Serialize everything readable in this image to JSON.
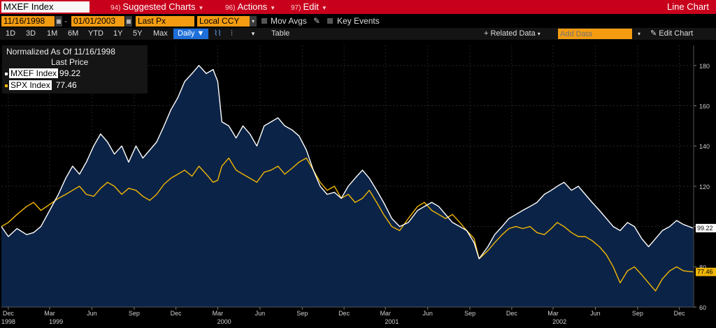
{
  "header": {
    "ticker": "MXEF Index",
    "menus": [
      {
        "num": "94)",
        "label": "Suggested Charts"
      },
      {
        "num": "96)",
        "label": "Actions"
      },
      {
        "num": "97)",
        "label": "Edit"
      }
    ],
    "title": "Line Chart"
  },
  "controls": {
    "start_date": "11/16/1998",
    "end_date": "01/01/2003",
    "field": "Last Px",
    "currency": "Local CCY",
    "mov_avgs": "Mov Avgs",
    "key_events": "Key Events"
  },
  "ranges": {
    "items": [
      "1D",
      "3D",
      "1M",
      "6M",
      "YTD",
      "1Y",
      "5Y",
      "Max"
    ],
    "frequency": "Daily",
    "table": "Table",
    "related": "+ Related Data",
    "add_data_placeholder": "Add Data",
    "edit_chart": "Edit Chart"
  },
  "legend": {
    "title": "Normalized As Of 11/16/1998",
    "subtitle": "Last Price",
    "entries": [
      {
        "name": "MXEF Index",
        "value": "99.22",
        "color": "#ffffff"
      },
      {
        "name": "SPX Index",
        "value": "77.46",
        "color": "#f2b705"
      }
    ]
  },
  "chart_data": {
    "type": "line",
    "ylim": [
      60,
      190
    ],
    "y_ticks": [
      60,
      80,
      100,
      120,
      140,
      160,
      180
    ],
    "x_range": [
      "1998-11-16",
      "2003-01-01"
    ],
    "x_tick_labels": [
      {
        "date": "1998-12-01",
        "label": "Dec"
      },
      {
        "date": "1999-03-01",
        "label": "Mar"
      },
      {
        "date": "1999-06-01",
        "label": "Jun"
      },
      {
        "date": "1999-09-01",
        "label": "Sep"
      },
      {
        "date": "1999-12-01",
        "label": "Dec"
      },
      {
        "date": "2000-03-01",
        "label": "Mar"
      },
      {
        "date": "2000-06-01",
        "label": "Jun"
      },
      {
        "date": "2000-09-01",
        "label": "Sep"
      },
      {
        "date": "2000-12-01",
        "label": "Dec"
      },
      {
        "date": "2001-03-01",
        "label": "Mar"
      },
      {
        "date": "2001-06-01",
        "label": "Jun"
      },
      {
        "date": "2001-09-01",
        "label": "Sep"
      },
      {
        "date": "2001-12-01",
        "label": "Dec"
      },
      {
        "date": "2002-03-01",
        "label": "Mar"
      },
      {
        "date": "2002-06-01",
        "label": "Jun"
      },
      {
        "date": "2002-09-01",
        "label": "Sep"
      },
      {
        "date": "2002-12-01",
        "label": "Dec"
      }
    ],
    "year_labels": [
      {
        "date": "1998-12-01",
        "label": "1998"
      },
      {
        "date": "1999-03-15",
        "label": "1999"
      },
      {
        "date": "2000-03-15",
        "label": "2000"
      },
      {
        "date": "2001-03-15",
        "label": "2001"
      },
      {
        "date": "2002-03-15",
        "label": "2002"
      }
    ],
    "series": [
      {
        "name": "MXEF Index",
        "color": "#ffffff",
        "fill": "#0b2346",
        "last": 99.22,
        "points": [
          [
            "1998-11-16",
            100
          ],
          [
            "1998-12-01",
            95
          ],
          [
            "1998-12-20",
            99
          ],
          [
            "1999-01-10",
            96
          ],
          [
            "1999-01-25",
            97
          ],
          [
            "1999-02-10",
            100
          ],
          [
            "1999-03-01",
            108
          ],
          [
            "1999-03-20",
            116
          ],
          [
            "1999-04-05",
            124
          ],
          [
            "1999-04-20",
            130
          ],
          [
            "1999-05-05",
            126
          ],
          [
            "1999-05-20",
            132
          ],
          [
            "1999-06-05",
            140
          ],
          [
            "1999-06-20",
            146
          ],
          [
            "1999-07-05",
            142
          ],
          [
            "1999-07-20",
            136
          ],
          [
            "1999-08-05",
            140
          ],
          [
            "1999-08-20",
            132
          ],
          [
            "1999-09-05",
            140
          ],
          [
            "1999-09-20",
            134
          ],
          [
            "1999-10-05",
            138
          ],
          [
            "1999-10-20",
            142
          ],
          [
            "1999-11-05",
            150
          ],
          [
            "1999-11-20",
            158
          ],
          [
            "1999-12-05",
            164
          ],
          [
            "1999-12-20",
            172
          ],
          [
            "2000-01-05",
            176
          ],
          [
            "2000-01-20",
            180
          ],
          [
            "2000-02-05",
            176
          ],
          [
            "2000-02-20",
            178
          ],
          [
            "2000-03-01",
            172
          ],
          [
            "2000-03-10",
            152
          ],
          [
            "2000-03-25",
            150
          ],
          [
            "2000-04-10",
            144
          ],
          [
            "2000-04-25",
            150
          ],
          [
            "2000-05-10",
            146
          ],
          [
            "2000-05-25",
            140
          ],
          [
            "2000-06-10",
            150
          ],
          [
            "2000-06-25",
            152
          ],
          [
            "2000-07-10",
            154
          ],
          [
            "2000-07-25",
            150
          ],
          [
            "2000-08-10",
            148
          ],
          [
            "2000-08-25",
            145
          ],
          [
            "2000-09-10",
            138
          ],
          [
            "2000-09-25",
            128
          ],
          [
            "2000-10-10",
            120
          ],
          [
            "2000-10-25",
            116
          ],
          [
            "2000-11-10",
            117
          ],
          [
            "2000-11-25",
            114
          ],
          [
            "2000-12-10",
            120
          ],
          [
            "2000-12-25",
            124
          ],
          [
            "2001-01-10",
            128
          ],
          [
            "2001-01-25",
            124
          ],
          [
            "2001-02-10",
            118
          ],
          [
            "2001-02-25",
            112
          ],
          [
            "2001-03-15",
            104
          ],
          [
            "2001-04-01",
            100
          ],
          [
            "2001-04-20",
            102
          ],
          [
            "2001-05-10",
            108
          ],
          [
            "2001-05-25",
            110
          ],
          [
            "2001-06-10",
            112
          ],
          [
            "2001-06-25",
            110
          ],
          [
            "2001-07-10",
            106
          ],
          [
            "2001-07-25",
            102
          ],
          [
            "2001-08-10",
            100
          ],
          [
            "2001-08-25",
            98
          ],
          [
            "2001-09-10",
            92
          ],
          [
            "2001-09-21",
            84
          ],
          [
            "2001-10-10",
            90
          ],
          [
            "2001-10-25",
            96
          ],
          [
            "2001-11-10",
            100
          ],
          [
            "2001-11-25",
            104
          ],
          [
            "2001-12-10",
            106
          ],
          [
            "2001-12-25",
            108
          ],
          [
            "2002-01-10",
            110
          ],
          [
            "2002-01-25",
            112
          ],
          [
            "2002-02-10",
            116
          ],
          [
            "2002-02-25",
            118
          ],
          [
            "2002-03-10",
            120
          ],
          [
            "2002-03-25",
            122
          ],
          [
            "2002-04-10",
            118
          ],
          [
            "2002-04-25",
            120
          ],
          [
            "2002-05-10",
            116
          ],
          [
            "2002-05-25",
            112
          ],
          [
            "2002-06-10",
            108
          ],
          [
            "2002-06-25",
            104
          ],
          [
            "2002-07-10",
            100
          ],
          [
            "2002-07-25",
            98
          ],
          [
            "2002-08-10",
            102
          ],
          [
            "2002-08-25",
            100
          ],
          [
            "2002-09-10",
            94
          ],
          [
            "2002-09-25",
            90
          ],
          [
            "2002-10-10",
            94
          ],
          [
            "2002-10-25",
            98
          ],
          [
            "2002-11-10",
            100
          ],
          [
            "2002-11-25",
            103
          ],
          [
            "2002-12-10",
            101
          ],
          [
            "2002-12-31",
            99.22
          ]
        ]
      },
      {
        "name": "SPX Index",
        "color": "#f2b705",
        "last": 77.46,
        "points": [
          [
            "1998-11-16",
            100
          ],
          [
            "1998-12-01",
            102
          ],
          [
            "1998-12-20",
            106
          ],
          [
            "1999-01-10",
            110
          ],
          [
            "1999-01-25",
            112
          ],
          [
            "1999-02-10",
            108
          ],
          [
            "1999-03-01",
            111
          ],
          [
            "1999-03-20",
            114
          ],
          [
            "1999-04-05",
            116
          ],
          [
            "1999-04-20",
            118
          ],
          [
            "1999-05-05",
            120
          ],
          [
            "1999-05-20",
            116
          ],
          [
            "1999-06-05",
            115
          ],
          [
            "1999-06-20",
            119
          ],
          [
            "1999-07-05",
            122
          ],
          [
            "1999-07-20",
            120
          ],
          [
            "1999-08-05",
            116
          ],
          [
            "1999-08-20",
            119
          ],
          [
            "1999-09-05",
            118
          ],
          [
            "1999-09-20",
            115
          ],
          [
            "1999-10-05",
            113
          ],
          [
            "1999-10-20",
            116
          ],
          [
            "1999-11-05",
            121
          ],
          [
            "1999-11-20",
            124
          ],
          [
            "1999-12-05",
            126
          ],
          [
            "1999-12-20",
            128
          ],
          [
            "2000-01-05",
            125
          ],
          [
            "2000-01-20",
            130
          ],
          [
            "2000-02-05",
            126
          ],
          [
            "2000-02-20",
            122
          ],
          [
            "2000-03-01",
            123
          ],
          [
            "2000-03-10",
            130
          ],
          [
            "2000-03-25",
            134
          ],
          [
            "2000-04-10",
            128
          ],
          [
            "2000-04-25",
            126
          ],
          [
            "2000-05-10",
            124
          ],
          [
            "2000-05-25",
            122
          ],
          [
            "2000-06-10",
            127
          ],
          [
            "2000-06-25",
            128
          ],
          [
            "2000-07-10",
            130
          ],
          [
            "2000-07-25",
            126
          ],
          [
            "2000-08-10",
            129
          ],
          [
            "2000-08-25",
            132
          ],
          [
            "2000-09-10",
            134
          ],
          [
            "2000-09-25",
            128
          ],
          [
            "2000-10-10",
            122
          ],
          [
            "2000-10-25",
            118
          ],
          [
            "2000-11-10",
            120
          ],
          [
            "2000-11-25",
            114
          ],
          [
            "2000-12-10",
            116
          ],
          [
            "2000-12-25",
            112
          ],
          [
            "2001-01-10",
            114
          ],
          [
            "2001-01-25",
            118
          ],
          [
            "2001-02-10",
            112
          ],
          [
            "2001-02-25",
            106
          ],
          [
            "2001-03-15",
            100
          ],
          [
            "2001-04-01",
            98
          ],
          [
            "2001-04-20",
            104
          ],
          [
            "2001-05-10",
            110
          ],
          [
            "2001-05-25",
            112
          ],
          [
            "2001-06-10",
            108
          ],
          [
            "2001-06-25",
            106
          ],
          [
            "2001-07-10",
            104
          ],
          [
            "2001-07-25",
            106
          ],
          [
            "2001-08-10",
            102
          ],
          [
            "2001-08-25",
            98
          ],
          [
            "2001-09-10",
            94
          ],
          [
            "2001-09-21",
            84
          ],
          [
            "2001-10-10",
            88
          ],
          [
            "2001-10-25",
            92
          ],
          [
            "2001-11-10",
            96
          ],
          [
            "2001-11-25",
            99
          ],
          [
            "2001-12-10",
            100
          ],
          [
            "2001-12-25",
            99
          ],
          [
            "2002-01-10",
            100
          ],
          [
            "2002-01-25",
            97
          ],
          [
            "2002-02-10",
            96
          ],
          [
            "2002-02-25",
            99
          ],
          [
            "2002-03-10",
            102
          ],
          [
            "2002-03-25",
            100
          ],
          [
            "2002-04-10",
            97
          ],
          [
            "2002-04-25",
            95
          ],
          [
            "2002-05-10",
            95
          ],
          [
            "2002-05-25",
            93
          ],
          [
            "2002-06-10",
            90
          ],
          [
            "2002-06-25",
            86
          ],
          [
            "2002-07-10",
            80
          ],
          [
            "2002-07-25",
            72
          ],
          [
            "2002-08-10",
            78
          ],
          [
            "2002-08-25",
            80
          ],
          [
            "2002-09-10",
            76
          ],
          [
            "2002-09-25",
            72
          ],
          [
            "2002-10-10",
            68
          ],
          [
            "2002-10-25",
            74
          ],
          [
            "2002-11-10",
            78
          ],
          [
            "2002-11-25",
            80
          ],
          [
            "2002-12-10",
            78
          ],
          [
            "2002-12-31",
            77.46
          ]
        ]
      }
    ]
  }
}
